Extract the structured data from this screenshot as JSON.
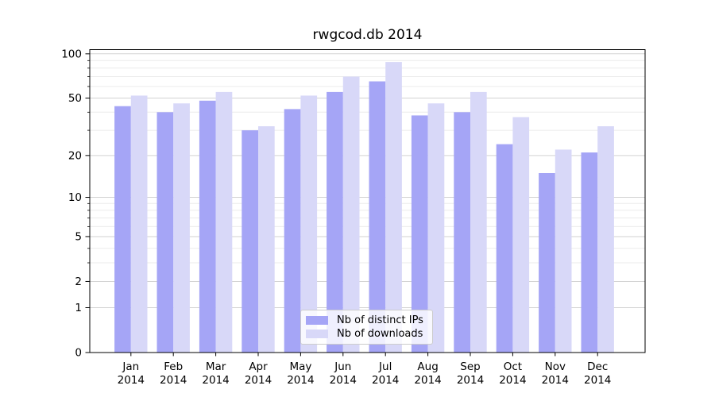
{
  "chart_data": {
    "type": "bar",
    "title": "rwgcod.db 2014",
    "xlabel": "",
    "ylabel": "",
    "year": "2014",
    "months": [
      "Jan",
      "Feb",
      "Mar",
      "Apr",
      "May",
      "Jun",
      "Jul",
      "Aug",
      "Sep",
      "Oct",
      "Nov",
      "Dec"
    ],
    "categories": [
      "Jan 2014",
      "Feb 2014",
      "Mar 2014",
      "Apr 2014",
      "May 2014",
      "Jun 2014",
      "Jul 2014",
      "Aug 2014",
      "Sep 2014",
      "Oct 2014",
      "Nov 2014",
      "Dec 2014"
    ],
    "series": [
      {
        "name": "Nb of distinct IPs",
        "color": "#a5a5f6",
        "values": [
          44,
          40,
          48,
          30,
          42,
          55,
          65,
          38,
          40,
          24,
          15,
          21
        ]
      },
      {
        "name": "Nb of downloads",
        "color": "#d8d8f8",
        "values": [
          52,
          46,
          55,
          32,
          52,
          70,
          88,
          46,
          55,
          37,
          22,
          32
        ]
      }
    ],
    "y_scale": "log10(1+v)",
    "ylim": [
      0,
      106.8
    ],
    "y_major_ticks": [
      0,
      1,
      2,
      5,
      10,
      20,
      50,
      100
    ],
    "y_minor_ticks": [
      3,
      4,
      6,
      7,
      8,
      9,
      30,
      40,
      60,
      70,
      80,
      90
    ],
    "grid": true,
    "legend_position": "lower center",
    "colors": {
      "spine": "#000000",
      "major_grid": "#d2d2d2",
      "minor_grid": "#ebebeb",
      "text": "#000000"
    }
  }
}
